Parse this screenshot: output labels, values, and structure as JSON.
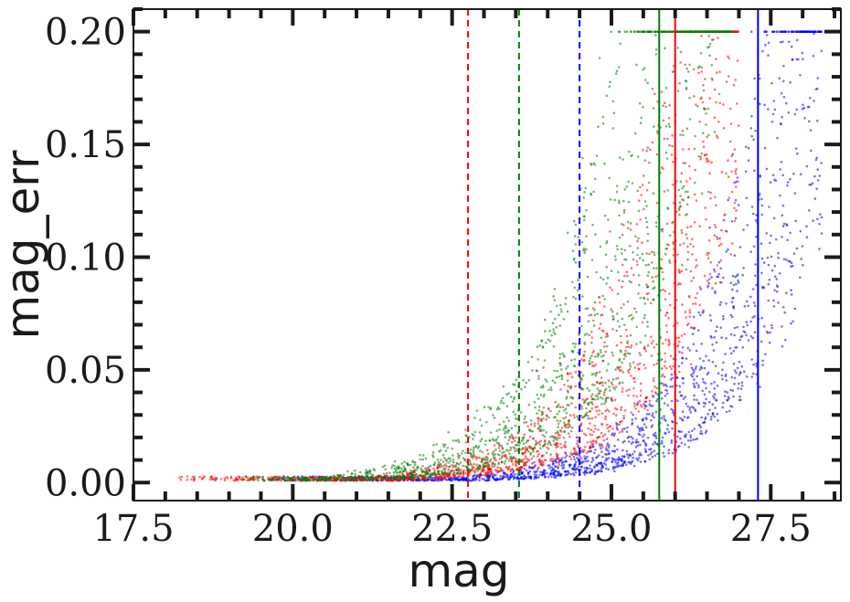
{
  "chart_data": {
    "type": "scatter",
    "title": "",
    "xlabel": "mag",
    "ylabel": "mag_err",
    "xlim": [
      17.5,
      28.6
    ],
    "ylim": [
      -0.008,
      0.21
    ],
    "x_ticks": [
      {
        "value": 17.5,
        "label": "17.5"
      },
      {
        "value": 20.0,
        "label": "20.0"
      },
      {
        "value": 22.5,
        "label": "22.5"
      },
      {
        "value": 25.0,
        "label": "25.0"
      },
      {
        "value": 27.5,
        "label": "27.5"
      }
    ],
    "y_ticks": [
      {
        "value": 0.0,
        "label": "0.00"
      },
      {
        "value": 0.05,
        "label": "0.05"
      },
      {
        "value": 0.1,
        "label": "0.10"
      },
      {
        "value": 0.15,
        "label": "0.15"
      },
      {
        "value": 0.2,
        "label": "0.20"
      }
    ],
    "x_minor_step": 0.5,
    "y_minor_step": 0.01,
    "grid": false,
    "error_cap": 0.2,
    "series": [
      {
        "color": "#0000ff",
        "mag_min": 19.5,
        "mag_max": 28.3,
        "curves": [
          {
            "m0": 26.2,
            "err_at_m0": 0.06
          },
          {
            "m0": 26.6,
            "err_at_m0": 0.06
          },
          {
            "m0": 27.0,
            "err_at_m0": 0.06
          },
          {
            "m0": 27.4,
            "err_at_m0": 0.06
          }
        ]
      },
      {
        "color": "#ff0000",
        "mag_min": 17.8,
        "mag_max": 27.0,
        "curves": [
          {
            "m0": 24.7,
            "err_at_m0": 0.06
          },
          {
            "m0": 25.2,
            "err_at_m0": 0.06
          },
          {
            "m0": 25.6,
            "err_at_m0": 0.06
          },
          {
            "m0": 26.0,
            "err_at_m0": 0.06
          }
        ]
      },
      {
        "color": "#008000",
        "mag_min": 19.0,
        "mag_max": 26.9,
        "curves": [
          {
            "m0": 23.9,
            "err_at_m0": 0.06
          },
          {
            "m0": 24.4,
            "err_at_m0": 0.06
          },
          {
            "m0": 24.9,
            "err_at_m0": 0.06
          },
          {
            "m0": 25.3,
            "err_at_m0": 0.06
          }
        ]
      }
    ],
    "vertical_lines": [
      {
        "x": 22.75,
        "color": "#ff0000",
        "style": "dashed"
      },
      {
        "x": 23.55,
        "color": "#008000",
        "style": "dashed"
      },
      {
        "x": 24.5,
        "color": "#0000ff",
        "style": "dashed"
      },
      {
        "x": 25.75,
        "color": "#008000",
        "style": "solid"
      },
      {
        "x": 26.0,
        "color": "#ff0000",
        "style": "solid"
      },
      {
        "x": 27.3,
        "color": "#0000ff",
        "style": "solid"
      }
    ]
  }
}
